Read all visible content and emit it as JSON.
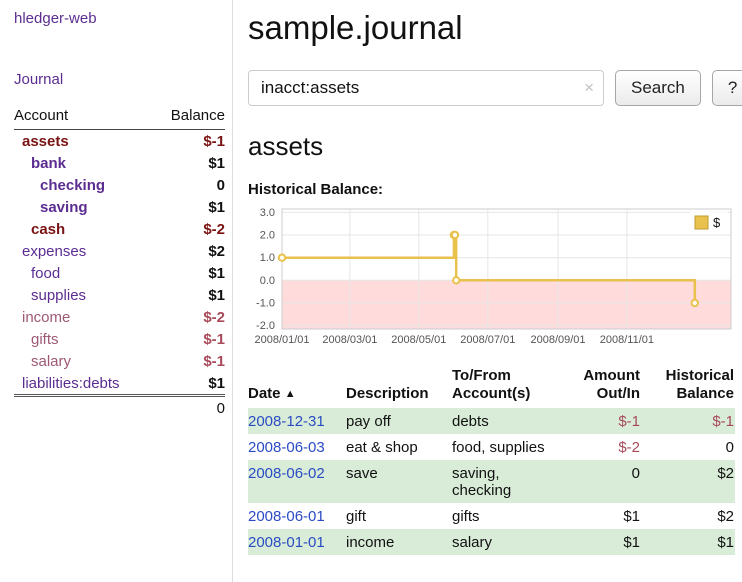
{
  "colors": {
    "purple": "#5c2d91",
    "rose": "#9d5874",
    "neg_strong": "#7a1313",
    "neg_soft": "#a84a5a",
    "link_blue": "#2b4bc4",
    "stripe_green": "#d8ecd8",
    "divider": "#dddddd"
  },
  "app": {
    "title": "hledger-web",
    "nav_journal_label": "Journal"
  },
  "sidebar": {
    "headers": {
      "account": "Account",
      "balance": "Balance"
    },
    "accounts": [
      {
        "name": "assets",
        "balance": "$-1",
        "depth": 0,
        "bold": true,
        "name_tone": "neg-strong",
        "balance_tone": "neg-strong"
      },
      {
        "name": "bank",
        "balance": "$1",
        "depth": 1,
        "bold": true,
        "name_tone": "purple",
        "balance_tone": "black"
      },
      {
        "name": "checking",
        "balance": "0",
        "depth": 2,
        "bold": true,
        "name_tone": "purple",
        "balance_tone": "black"
      },
      {
        "name": "saving",
        "balance": "$1",
        "depth": 2,
        "bold": true,
        "name_tone": "purple",
        "balance_tone": "black"
      },
      {
        "name": "cash",
        "balance": "$-2",
        "depth": 1,
        "bold": true,
        "name_tone": "neg-strong",
        "balance_tone": "neg-strong"
      },
      {
        "name": "expenses",
        "balance": "$2",
        "depth": 0,
        "bold": false,
        "name_tone": "purple",
        "balance_tone": "black"
      },
      {
        "name": "food",
        "balance": "$1",
        "depth": 1,
        "bold": false,
        "name_tone": "purple",
        "balance_tone": "black"
      },
      {
        "name": "supplies",
        "balance": "$1",
        "depth": 1,
        "bold": false,
        "name_tone": "purple",
        "balance_tone": "black"
      },
      {
        "name": "income",
        "balance": "$-2",
        "depth": 0,
        "bold": false,
        "name_tone": "rose",
        "balance_tone": "neg-soft"
      },
      {
        "name": "gifts",
        "balance": "$-1",
        "depth": 1,
        "bold": false,
        "name_tone": "rose",
        "balance_tone": "neg-soft"
      },
      {
        "name": "salary",
        "balance": "$-1",
        "depth": 1,
        "bold": false,
        "name_tone": "rose",
        "balance_tone": "neg-soft"
      },
      {
        "name": "liabilities:debts",
        "balance": "$1",
        "depth": 0,
        "bold": false,
        "name_tone": "purple",
        "balance_tone": "black"
      }
    ],
    "total": "0"
  },
  "main": {
    "title": "sample.journal",
    "search": {
      "value": "inacct:assets",
      "clear_icon": "×",
      "button_label": "Search",
      "help_label": "?"
    },
    "account_heading": "assets",
    "chart_heading": "Historical Balance:"
  },
  "chart_data": {
    "type": "line",
    "title": "Historical Balance",
    "step": true,
    "x_type": "date",
    "series": [
      {
        "name": "$",
        "points": [
          [
            "2008-01-01",
            1
          ],
          [
            "2008-06-01",
            2
          ],
          [
            "2008-06-02",
            2
          ],
          [
            "2008-06-03",
            0
          ],
          [
            "2008-12-31",
            -1
          ]
        ]
      }
    ],
    "xlim": [
      "2008-01-01",
      "2009-02-01"
    ],
    "ylim": [
      -2.15,
      3.15
    ],
    "yticks": [
      "3.0",
      "2.0",
      "1.0",
      "0.0",
      "-1.0",
      "-2.0"
    ],
    "xticks": [
      {
        "date": "2008-01-01",
        "label": "2008/01/01"
      },
      {
        "date": "2008-03-01",
        "label": "2008/03/01"
      },
      {
        "date": "2008-05-01",
        "label": "2008/05/01"
      },
      {
        "date": "2008-07-01",
        "label": "2008/07/01"
      },
      {
        "date": "2008-09-01",
        "label": "2008/09/01"
      },
      {
        "date": "2008-11-01",
        "label": "2008/11/01"
      }
    ],
    "legend": {
      "label": "$",
      "position": "top-right"
    },
    "line_color": "#e9c24d",
    "point_fill": "#fffdf5",
    "fill_below_zero": "#ffdbdb",
    "legend_swatch_border": "#bf9b30",
    "grid": true
  },
  "register": {
    "headers": {
      "date": "Date",
      "sort_icon": "▲",
      "description": "Description",
      "accounts": "To/From Account(s)",
      "amount": "Amount Out/In",
      "balance": "Historical Balance"
    },
    "rows": [
      {
        "date": "2008-12-31",
        "description": "pay off",
        "accounts": "debts",
        "amount": "$-1",
        "balance": "$-1",
        "amount_negative": true,
        "balance_negative": true,
        "stripe": true
      },
      {
        "date": "2008-06-03",
        "description": "eat & shop",
        "accounts": "food, supplies",
        "amount": "$-2",
        "balance": "0",
        "amount_negative": true,
        "balance_negative": false,
        "stripe": false
      },
      {
        "date": "2008-06-02",
        "description": "save",
        "accounts": "saving, checking",
        "amount": "0",
        "balance": "$2",
        "amount_negative": false,
        "balance_negative": false,
        "stripe": true
      },
      {
        "date": "2008-06-01",
        "description": "gift",
        "accounts": "gifts",
        "amount": "$1",
        "balance": "$2",
        "amount_negative": false,
        "balance_negative": false,
        "stripe": false
      },
      {
        "date": "2008-01-01",
        "description": "income",
        "accounts": "salary",
        "amount": "$1",
        "balance": "$1",
        "amount_negative": false,
        "balance_negative": false,
        "stripe": true
      }
    ]
  }
}
